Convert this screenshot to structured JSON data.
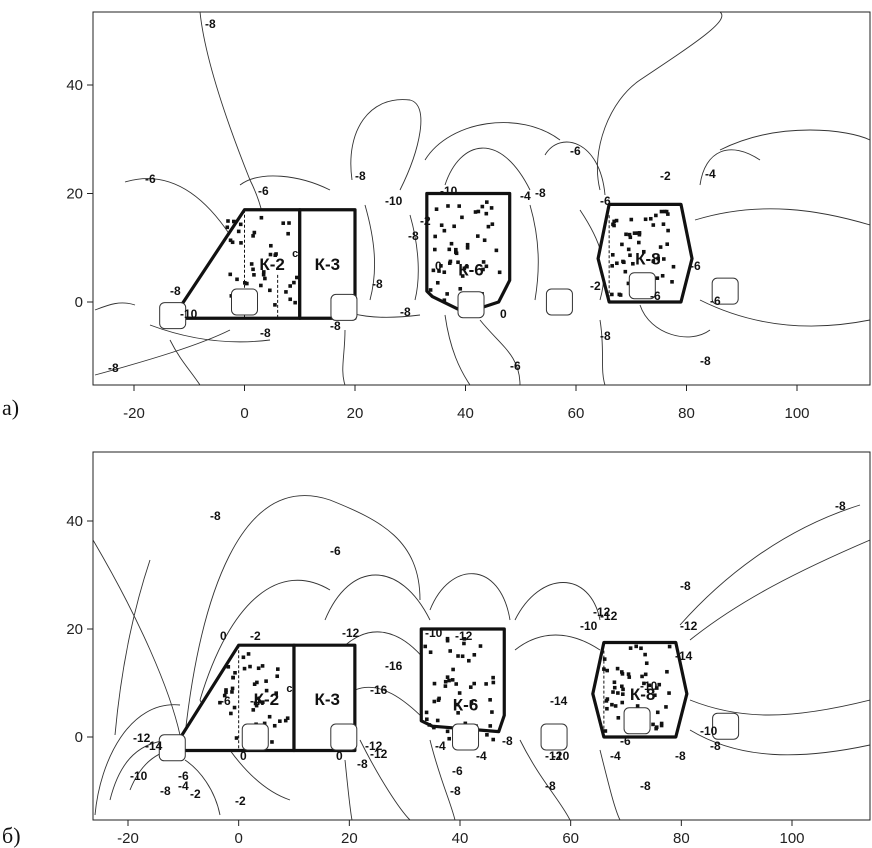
{
  "panels": [
    {
      "id": "a",
      "letter": "а)",
      "x_ticks": [
        "-20",
        "0",
        "20",
        "40",
        "60",
        "80",
        "100"
      ],
      "x_tick_values": [
        -20,
        0,
        20,
        40,
        60,
        80,
        100
      ],
      "y_ticks": [
        "0",
        "20",
        "40"
      ],
      "y_tick_values": [
        0,
        20,
        40
      ],
      "blocks": [
        {
          "name": "К-2",
          "sup": "с"
        },
        {
          "name": "К-3"
        },
        {
          "name": "К-6"
        },
        {
          "name": "К-8"
        }
      ],
      "contour_labels": [
        "-8",
        "-8",
        "-6",
        "-8",
        "-6",
        "-8",
        "-10",
        "-8",
        "-10",
        "-8",
        "-6",
        "-4",
        "-6",
        "-2",
        "-4",
        "-6",
        "-8",
        "-10",
        "-8",
        "-8",
        "0",
        "-2",
        "-8",
        "0",
        "-6",
        "-2",
        "-6",
        "-8",
        "-8",
        "-6"
      ]
    },
    {
      "id": "b",
      "letter": "б)",
      "x_ticks": [
        "-20",
        "0",
        "20",
        "40",
        "60",
        "80",
        "100"
      ],
      "x_tick_values": [
        -20,
        0,
        20,
        40,
        60,
        80,
        100
      ],
      "y_ticks": [
        "0",
        "20",
        "40"
      ],
      "y_tick_values": [
        0,
        20,
        40
      ],
      "blocks": [
        {
          "name": "К-2",
          "sup": "с"
        },
        {
          "name": "К-3"
        },
        {
          "name": "К-6"
        },
        {
          "name": "К-8"
        }
      ],
      "contour_labels": [
        "-8",
        "-6",
        "-8",
        "-8",
        "-12",
        "-10",
        "-12",
        "-16",
        "-16",
        "-12",
        "-10",
        "-12",
        "-14",
        "-12",
        "-10",
        "-12",
        "-10",
        "-14",
        "-12",
        "-10",
        "-8",
        "-6",
        "-4",
        "-2",
        "0",
        "0",
        "-2",
        "-4",
        "-6",
        "-8",
        "-10",
        "-12",
        "-14",
        "-2",
        "0",
        "-8",
        "-4",
        "-6",
        "-8",
        "-4",
        "-8",
        "-12",
        "-8",
        "-6",
        "-4",
        "-8",
        "-8"
      ]
    }
  ]
}
